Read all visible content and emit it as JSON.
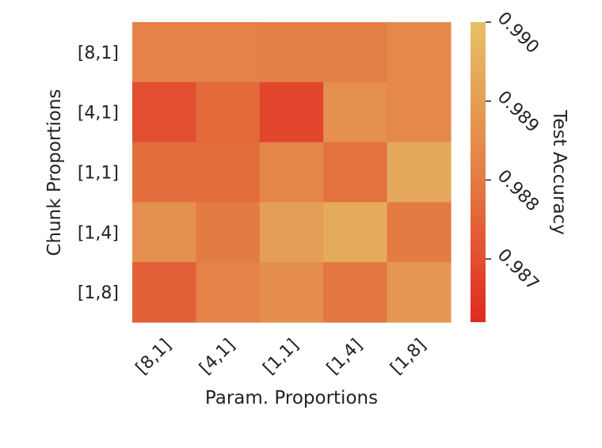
{
  "chart_data": {
    "type": "heatmap",
    "title": "",
    "xlabel": "Param. Proportions",
    "ylabel": "Chunk Proportions",
    "x_categories": [
      "[8,1]",
      "[4,1]",
      "[1,1]",
      "[1,4]",
      "[1,8]"
    ],
    "y_categories": [
      "[8,1]",
      "[4,1]",
      "[1,1]",
      "[1,4]",
      "[1,8]"
    ],
    "values": [
      [
        0.9882,
        0.9882,
        0.9881,
        0.9881,
        0.9884
      ],
      [
        0.987,
        0.9876,
        0.9868,
        0.9886,
        0.9884
      ],
      [
        0.9877,
        0.9877,
        0.9883,
        0.9878,
        0.9893
      ],
      [
        0.9886,
        0.988,
        0.989,
        0.9894,
        0.988
      ],
      [
        0.9874,
        0.9882,
        0.9885,
        0.9879,
        0.9888
      ]
    ],
    "colorbar": {
      "label": "Test Accuracy",
      "range": [
        0.9862,
        0.99
      ],
      "ticks": [
        "0.987",
        "0.988",
        "0.989",
        "0.990"
      ],
      "tick_values": [
        0.987,
        0.988,
        0.989,
        0.99
      ],
      "colors": [
        "#df2a20",
        "#e47f45",
        "#e6c066"
      ]
    },
    "grid": false
  }
}
